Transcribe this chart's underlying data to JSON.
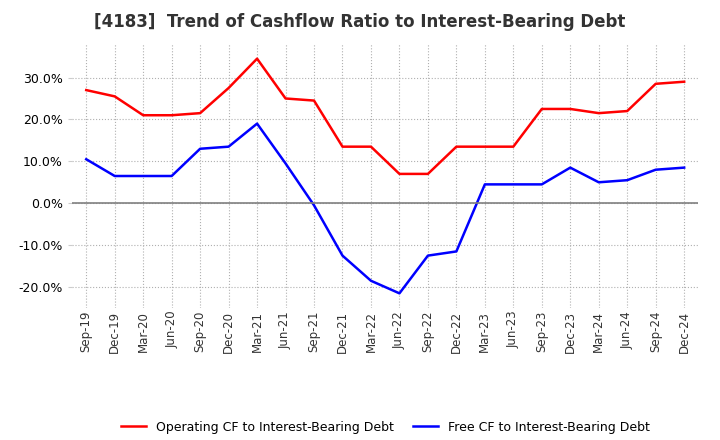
{
  "title": "[4183]  Trend of Cashflow Ratio to Interest-Bearing Debt",
  "x_labels": [
    "Sep-19",
    "Dec-19",
    "Mar-20",
    "Jun-20",
    "Sep-20",
    "Dec-20",
    "Mar-21",
    "Jun-21",
    "Sep-21",
    "Dec-21",
    "Mar-22",
    "Jun-22",
    "Sep-22",
    "Dec-22",
    "Mar-23",
    "Jun-23",
    "Sep-23",
    "Dec-23",
    "Mar-24",
    "Jun-24",
    "Sep-24",
    "Dec-24"
  ],
  "operating_cf": [
    27.0,
    25.5,
    21.0,
    21.0,
    21.5,
    27.5,
    34.5,
    25.0,
    24.5,
    13.5,
    13.5,
    7.0,
    7.0,
    13.5,
    13.5,
    13.5,
    22.5,
    22.5,
    21.5,
    22.0,
    28.5,
    29.0
  ],
  "free_cf": [
    10.5,
    6.5,
    6.5,
    6.5,
    13.0,
    13.5,
    19.0,
    9.5,
    -0.5,
    -12.5,
    -18.5,
    -21.5,
    -12.5,
    -11.5,
    4.5,
    4.5,
    4.5,
    8.5,
    5.0,
    5.5,
    8.0,
    8.5
  ],
  "ylim": [
    -25,
    38
  ],
  "yticks": [
    -20,
    -10,
    0,
    10,
    20,
    30
  ],
  "operating_color": "#ff0000",
  "free_color": "#0000ff",
  "background_color": "#ffffff",
  "grid_color": "#b0b0b0",
  "zero_line_color": "#808080",
  "title_color": "#333333",
  "legend_op": "Operating CF to Interest-Bearing Debt",
  "legend_free": "Free CF to Interest-Bearing Debt"
}
